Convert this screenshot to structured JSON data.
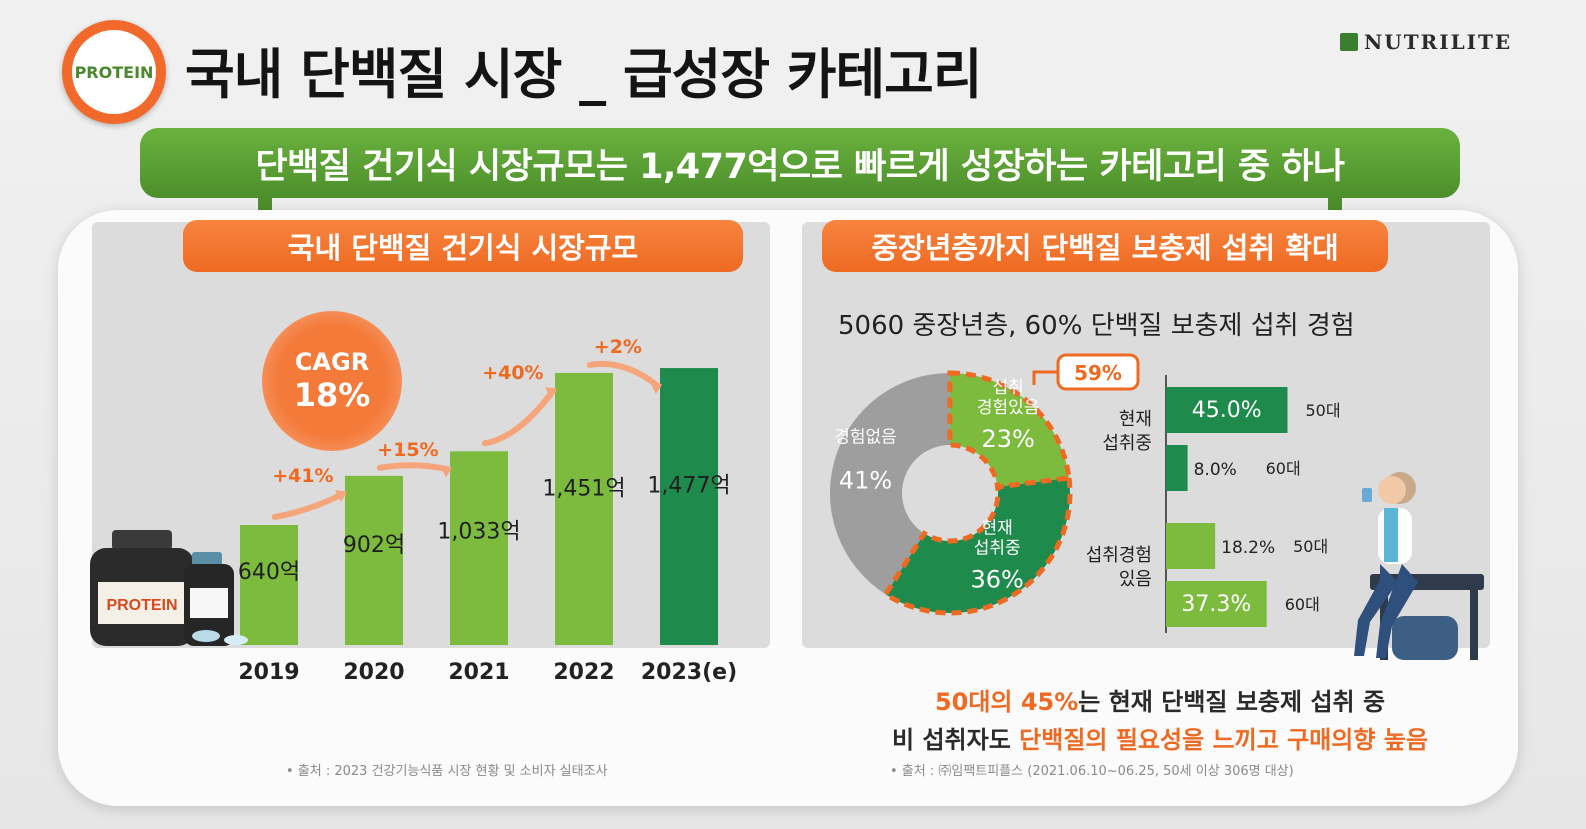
{
  "header": {
    "logo_text": "PROTEIN",
    "title": "국내 단백질 시장 _ 급성장 카테고리",
    "brand": "NUTRILITE"
  },
  "banner": "단백질 건기식 시장규모는 1,477억으로 빠르게 성장하는 카테고리 중 하나",
  "left": {
    "tab": "국내 단백질 건기식 시장규모",
    "cagr_label": "CAGR",
    "cagr_value": "18%",
    "jar_label": "PROTEIN",
    "source": "• 출처 : 2023 건강기능식품 시장 현황 및 소비자 실태조사"
  },
  "right": {
    "tab": "중장년층까지 단백질 보충제 섭취 확대",
    "heading": "5060 중장년층, 60% 단백질 보충제 섭취 경험",
    "callout": "59%",
    "conclusion_line1_hl": "50대의 45%",
    "conclusion_line1_rest": "는 현재 단백질 보충제 섭취 중",
    "conclusion_line2_pre": "비 섭취자도 ",
    "conclusion_line2_hl": "단백질의 필요성을 느끼고 구매의향 높음",
    "source": "• 출처 : ㈜임팩트피플스 (2021.06.10~06.25, 50세 이상 306명 대상)"
  },
  "colors": {
    "green_light": "#7dbb3f",
    "green_dark": "#1e8a4c",
    "orange": "#ee6a22",
    "gray": "#9e9e9e"
  },
  "chart_data": [
    {
      "type": "bar",
      "categories": [
        "2019",
        "2020",
        "2021",
        "2022",
        "2023(e)"
      ],
      "values": [
        640,
        902,
        1033,
        1451,
        1477
      ],
      "value_labels": [
        "640억",
        "902억",
        "1,033억",
        "1,451억",
        "1,477억"
      ],
      "growth_labels": [
        "+41%",
        "+15%",
        "+40%",
        "+2%"
      ],
      "ylim": [
        0,
        1600
      ],
      "title": "",
      "xlabel": "",
      "ylabel": ""
    },
    {
      "type": "pie",
      "labels": [
        "경험없음",
        "섭취\n경험있음",
        "현재\n섭취중"
      ],
      "values": [
        41,
        23,
        36
      ],
      "value_labels": [
        "41%",
        "23%",
        "36%"
      ]
    },
    {
      "type": "bar",
      "orientation": "horizontal",
      "groups": [
        {
          "label": "현재\n섭취중",
          "bars": [
            {
              "name": "50대",
              "value": 45.0,
              "label": "45.0%"
            },
            {
              "name": "60대",
              "value": 8.0,
              "label": "8.0%"
            }
          ]
        },
        {
          "label": "섭취경험\n있음",
          "bars": [
            {
              "name": "50대",
              "value": 18.2,
              "label": "18.2%"
            },
            {
              "name": "60대",
              "value": 37.3,
              "label": "37.3%"
            }
          ]
        }
      ],
      "xlim": [
        0,
        100
      ]
    }
  ]
}
